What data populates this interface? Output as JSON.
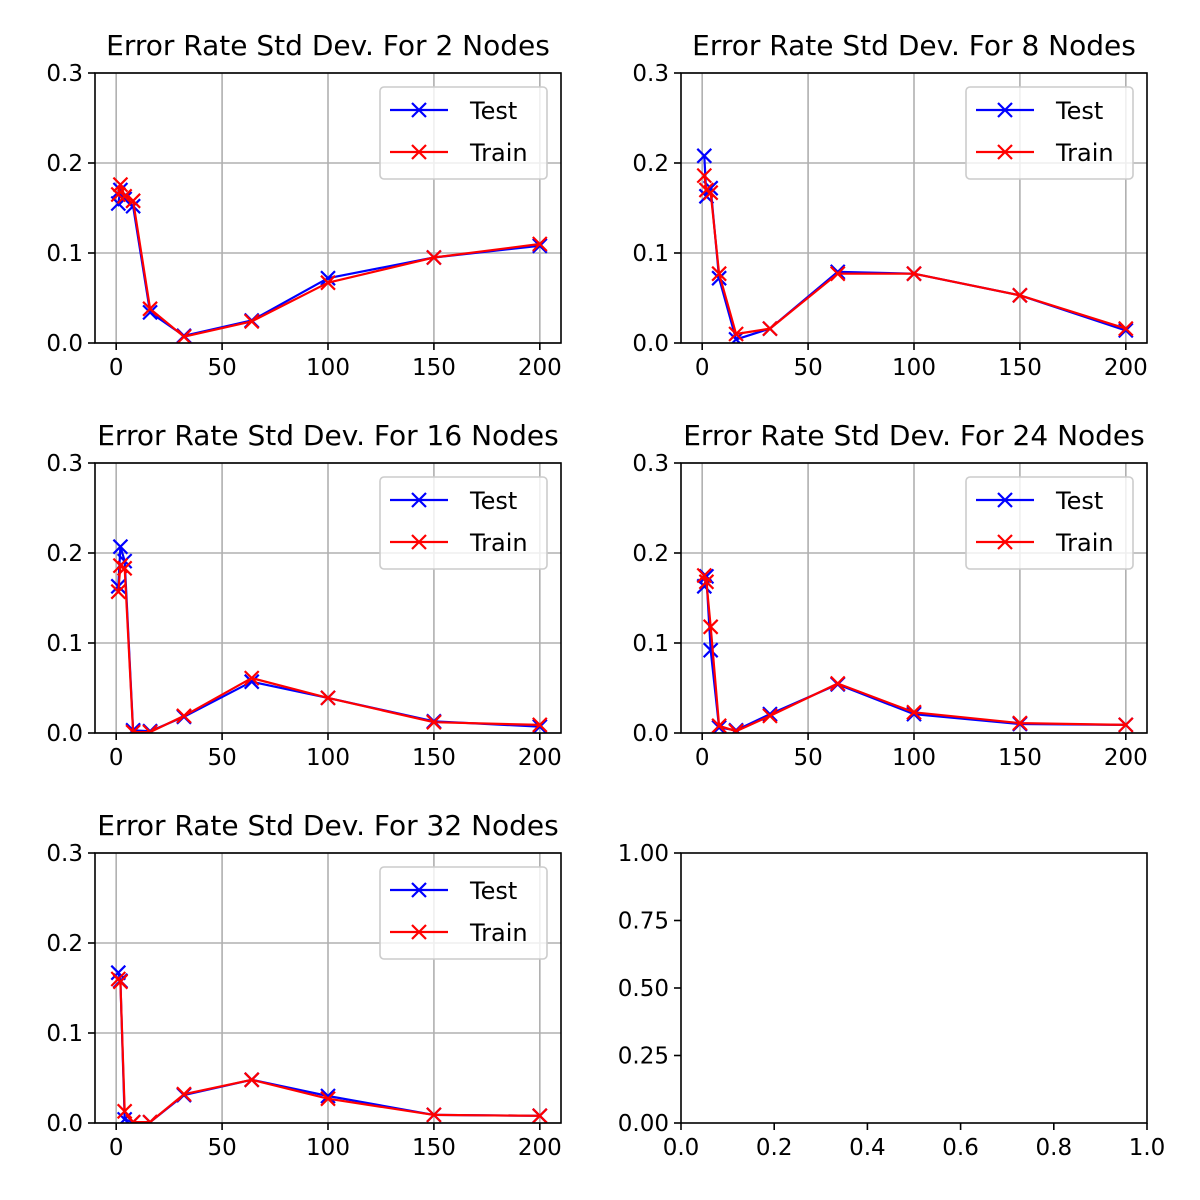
{
  "colors": {
    "test": "#0000ff",
    "train": "#ff0000",
    "grid": "#b0b0b0",
    "axis": "#000000",
    "legend_edge": "#cccccc"
  },
  "chart_data": [
    {
      "type": "line",
      "title": "Error Rate Std Dev. For 2 Nodes",
      "xlabel": "",
      "ylabel": "",
      "xlim": [
        -10,
        210
      ],
      "ylim": [
        0,
        0.3
      ],
      "xticks": [
        0,
        50,
        100,
        150,
        200
      ],
      "xtick_labels": [
        "0",
        "50",
        "100",
        "150",
        "200"
      ],
      "yticks": [
        0,
        0.1,
        0.2,
        0.3
      ],
      "ytick_labels": [
        "0.0",
        "0.1",
        "0.2",
        "0.3"
      ],
      "grid": true,
      "legend": "top-right",
      "x": [
        1,
        2,
        4,
        8,
        16,
        32,
        64,
        100,
        150,
        200
      ],
      "series": [
        {
          "name": "Test",
          "color": "blue",
          "marker": "x",
          "values": [
            0.155,
            0.17,
            0.16,
            0.152,
            0.034,
            0.008,
            0.025,
            0.072,
            0.095,
            0.108
          ]
        },
        {
          "name": "Train",
          "color": "red",
          "marker": "x",
          "values": [
            0.165,
            0.176,
            0.163,
            0.158,
            0.038,
            0.007,
            0.024,
            0.067,
            0.095,
            0.11
          ]
        }
      ]
    },
    {
      "type": "line",
      "title": "Error Rate Std Dev. For 8 Nodes",
      "xlabel": "",
      "ylabel": "",
      "xlim": [
        -10,
        210
      ],
      "ylim": [
        0,
        0.3
      ],
      "xticks": [
        0,
        50,
        100,
        150,
        200
      ],
      "xtick_labels": [
        "0",
        "50",
        "100",
        "150",
        "200"
      ],
      "yticks": [
        0,
        0.1,
        0.2,
        0.3
      ],
      "ytick_labels": [
        "0.0",
        "0.1",
        "0.2",
        "0.3"
      ],
      "grid": true,
      "legend": "top-right",
      "x": [
        1,
        2,
        4,
        8,
        16,
        32,
        64,
        100,
        150,
        200
      ],
      "series": [
        {
          "name": "Test",
          "color": "blue",
          "marker": "x",
          "values": [
            0.208,
            0.163,
            0.172,
            0.072,
            0.004,
            0.016,
            0.079,
            0.077,
            0.053,
            0.014
          ]
        },
        {
          "name": "Train",
          "color": "red",
          "marker": "x",
          "values": [
            0.186,
            0.17,
            0.167,
            0.077,
            0.01,
            0.016,
            0.077,
            0.077,
            0.053,
            0.016
          ]
        }
      ]
    },
    {
      "type": "line",
      "title": "Error Rate Std Dev. For 16 Nodes",
      "xlabel": "",
      "ylabel": "",
      "xlim": [
        -10,
        210
      ],
      "ylim": [
        0,
        0.3
      ],
      "xticks": [
        0,
        50,
        100,
        150,
        200
      ],
      "xtick_labels": [
        "0",
        "50",
        "100",
        "150",
        "200"
      ],
      "yticks": [
        0,
        0.1,
        0.2,
        0.3
      ],
      "ytick_labels": [
        "0.0",
        "0.1",
        "0.2",
        "0.3"
      ],
      "grid": true,
      "legend": "top-right",
      "x": [
        1,
        2,
        4,
        8,
        16,
        32,
        64,
        100,
        150,
        200
      ],
      "series": [
        {
          "name": "Test",
          "color": "blue",
          "marker": "x",
          "values": [
            0.163,
            0.207,
            0.191,
            0.003,
            0.002,
            0.018,
            0.057,
            0.039,
            0.013,
            0.007
          ]
        },
        {
          "name": "Train",
          "color": "red",
          "marker": "x",
          "values": [
            0.157,
            0.186,
            0.183,
            0.001,
            0.001,
            0.019,
            0.061,
            0.039,
            0.012,
            0.009
          ]
        }
      ]
    },
    {
      "type": "line",
      "title": "Error Rate Std Dev. For 24 Nodes",
      "xlabel": "",
      "ylabel": "",
      "xlim": [
        -10,
        210
      ],
      "ylim": [
        0,
        0.3
      ],
      "xticks": [
        0,
        50,
        100,
        150,
        200
      ],
      "xtick_labels": [
        "0",
        "50",
        "100",
        "150",
        "200"
      ],
      "yticks": [
        0,
        0.1,
        0.2,
        0.3
      ],
      "ytick_labels": [
        "0.0",
        "0.1",
        "0.2",
        "0.3"
      ],
      "grid": true,
      "legend": "top-right",
      "x": [
        1,
        2,
        4,
        8,
        16,
        32,
        64,
        100,
        150,
        200
      ],
      "series": [
        {
          "name": "Test",
          "color": "blue",
          "marker": "x",
          "values": [
            0.163,
            0.174,
            0.092,
            0.006,
            0.003,
            0.021,
            0.054,
            0.021,
            0.01,
            0.009
          ]
        },
        {
          "name": "Train",
          "color": "red",
          "marker": "x",
          "values": [
            0.175,
            0.168,
            0.118,
            0.008,
            0.002,
            0.019,
            0.055,
            0.023,
            0.011,
            0.009
          ]
        }
      ]
    },
    {
      "type": "line",
      "title": "Error Rate Std Dev. For 32 Nodes",
      "xlabel": "",
      "ylabel": "",
      "xlim": [
        -10,
        210
      ],
      "ylim": [
        0,
        0.3
      ],
      "xticks": [
        0,
        50,
        100,
        150,
        200
      ],
      "xtick_labels": [
        "0",
        "50",
        "100",
        "150",
        "200"
      ],
      "yticks": [
        0,
        0.1,
        0.2,
        0.3
      ],
      "ytick_labels": [
        "0.0",
        "0.1",
        "0.2",
        "0.3"
      ],
      "grid": true,
      "legend": "top-right",
      "x": [
        1,
        2,
        4,
        8,
        16,
        32,
        64,
        100,
        150,
        200
      ],
      "series": [
        {
          "name": "Test",
          "color": "blue",
          "marker": "x",
          "values": [
            0.167,
            0.158,
            0.004,
            0.001,
            0.001,
            0.031,
            0.048,
            0.03,
            0.009,
            0.008
          ]
        },
        {
          "name": "Train",
          "color": "red",
          "marker": "x",
          "values": [
            0.16,
            0.157,
            0.013,
            0.001,
            0.001,
            0.032,
            0.048,
            0.027,
            0.009,
            0.008
          ]
        }
      ]
    },
    {
      "type": "line",
      "title": "",
      "xlabel": "",
      "ylabel": "",
      "xlim": [
        0,
        1
      ],
      "ylim": [
        0,
        1
      ],
      "xticks": [
        0,
        0.2,
        0.4,
        0.6,
        0.8,
        1.0
      ],
      "xtick_labels": [
        "0.0",
        "0.2",
        "0.4",
        "0.6",
        "0.8",
        "1.0"
      ],
      "yticks": [
        0,
        0.25,
        0.5,
        0.75,
        1.0
      ],
      "ytick_labels": [
        "0.00",
        "0.25",
        "0.50",
        "0.75",
        "1.00"
      ],
      "grid": false,
      "legend": "none",
      "x": [],
      "series": []
    }
  ]
}
